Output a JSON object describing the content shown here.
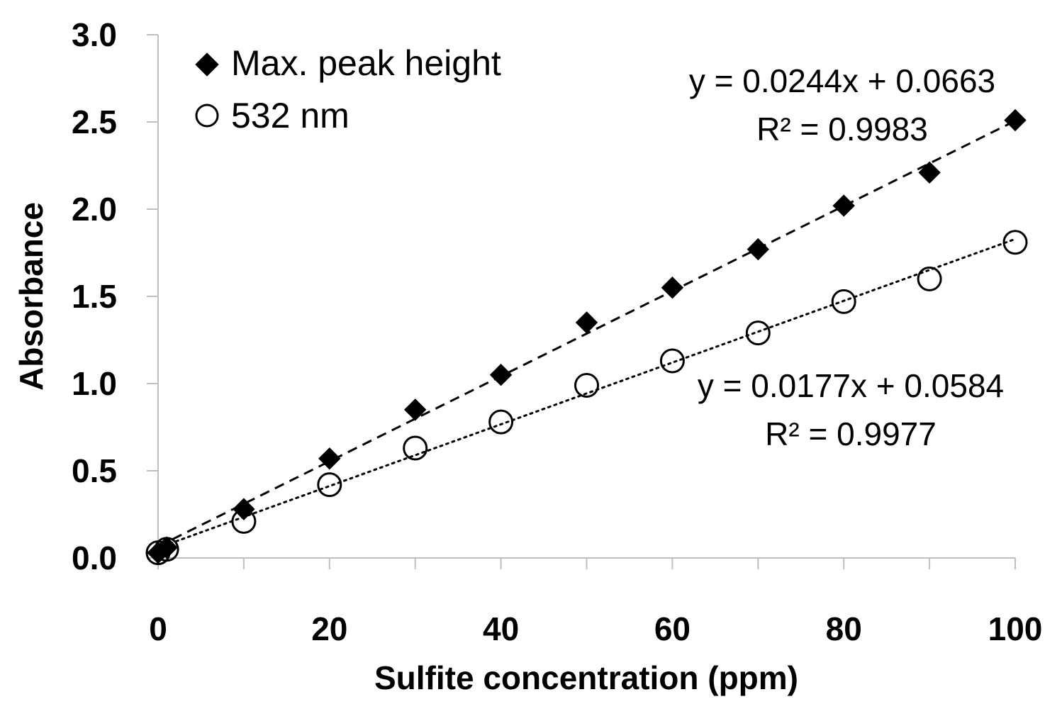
{
  "chart_data": {
    "type": "scatter",
    "title": "",
    "xlabel": "Sulfite concentration (ppm)",
    "ylabel": "Absorbance",
    "xlim": [
      0,
      100
    ],
    "ylim": [
      0,
      3.0
    ],
    "xticks": [
      0,
      20,
      40,
      60,
      80,
      100
    ],
    "xtick_labels": [
      "0",
      "20",
      "40",
      "60",
      "80",
      "100"
    ],
    "yticks": [
      0,
      0.5,
      1.0,
      1.5,
      2.0,
      2.5,
      3.0
    ],
    "ytick_labels": [
      "0.0",
      "0.5",
      "1.0",
      "1.5",
      "2.0",
      "2.5",
      "3.0"
    ],
    "grid": false,
    "legend_position": "top-left",
    "series": [
      {
        "name": "Max. peak height",
        "marker": "filled-diamond",
        "color": "#000000",
        "x": [
          0,
          1,
          10,
          20,
          30,
          40,
          50,
          60,
          70,
          80,
          90,
          100
        ],
        "y": [
          0.03,
          0.06,
          0.28,
          0.57,
          0.85,
          1.05,
          1.35,
          1.55,
          1.77,
          2.02,
          2.21,
          2.51
        ],
        "trendline": {
          "slope": 0.0244,
          "intercept": 0.0663,
          "style": "dashed"
        },
        "equation": "y = 0.0244x + 0.0663",
        "r2": "R² = 0.9983"
      },
      {
        "name": "532 nm",
        "marker": "open-circle",
        "color": "#000000",
        "x": [
          0,
          1,
          10,
          20,
          30,
          40,
          50,
          60,
          70,
          80,
          90,
          100
        ],
        "y": [
          0.03,
          0.05,
          0.21,
          0.42,
          0.63,
          0.78,
          0.99,
          1.13,
          1.29,
          1.47,
          1.6,
          1.81
        ],
        "trendline": {
          "slope": 0.0177,
          "intercept": 0.0584,
          "style": "dotted"
        },
        "equation": "y = 0.0177x + 0.0584",
        "r2": "R² = 0.9977"
      }
    ]
  }
}
